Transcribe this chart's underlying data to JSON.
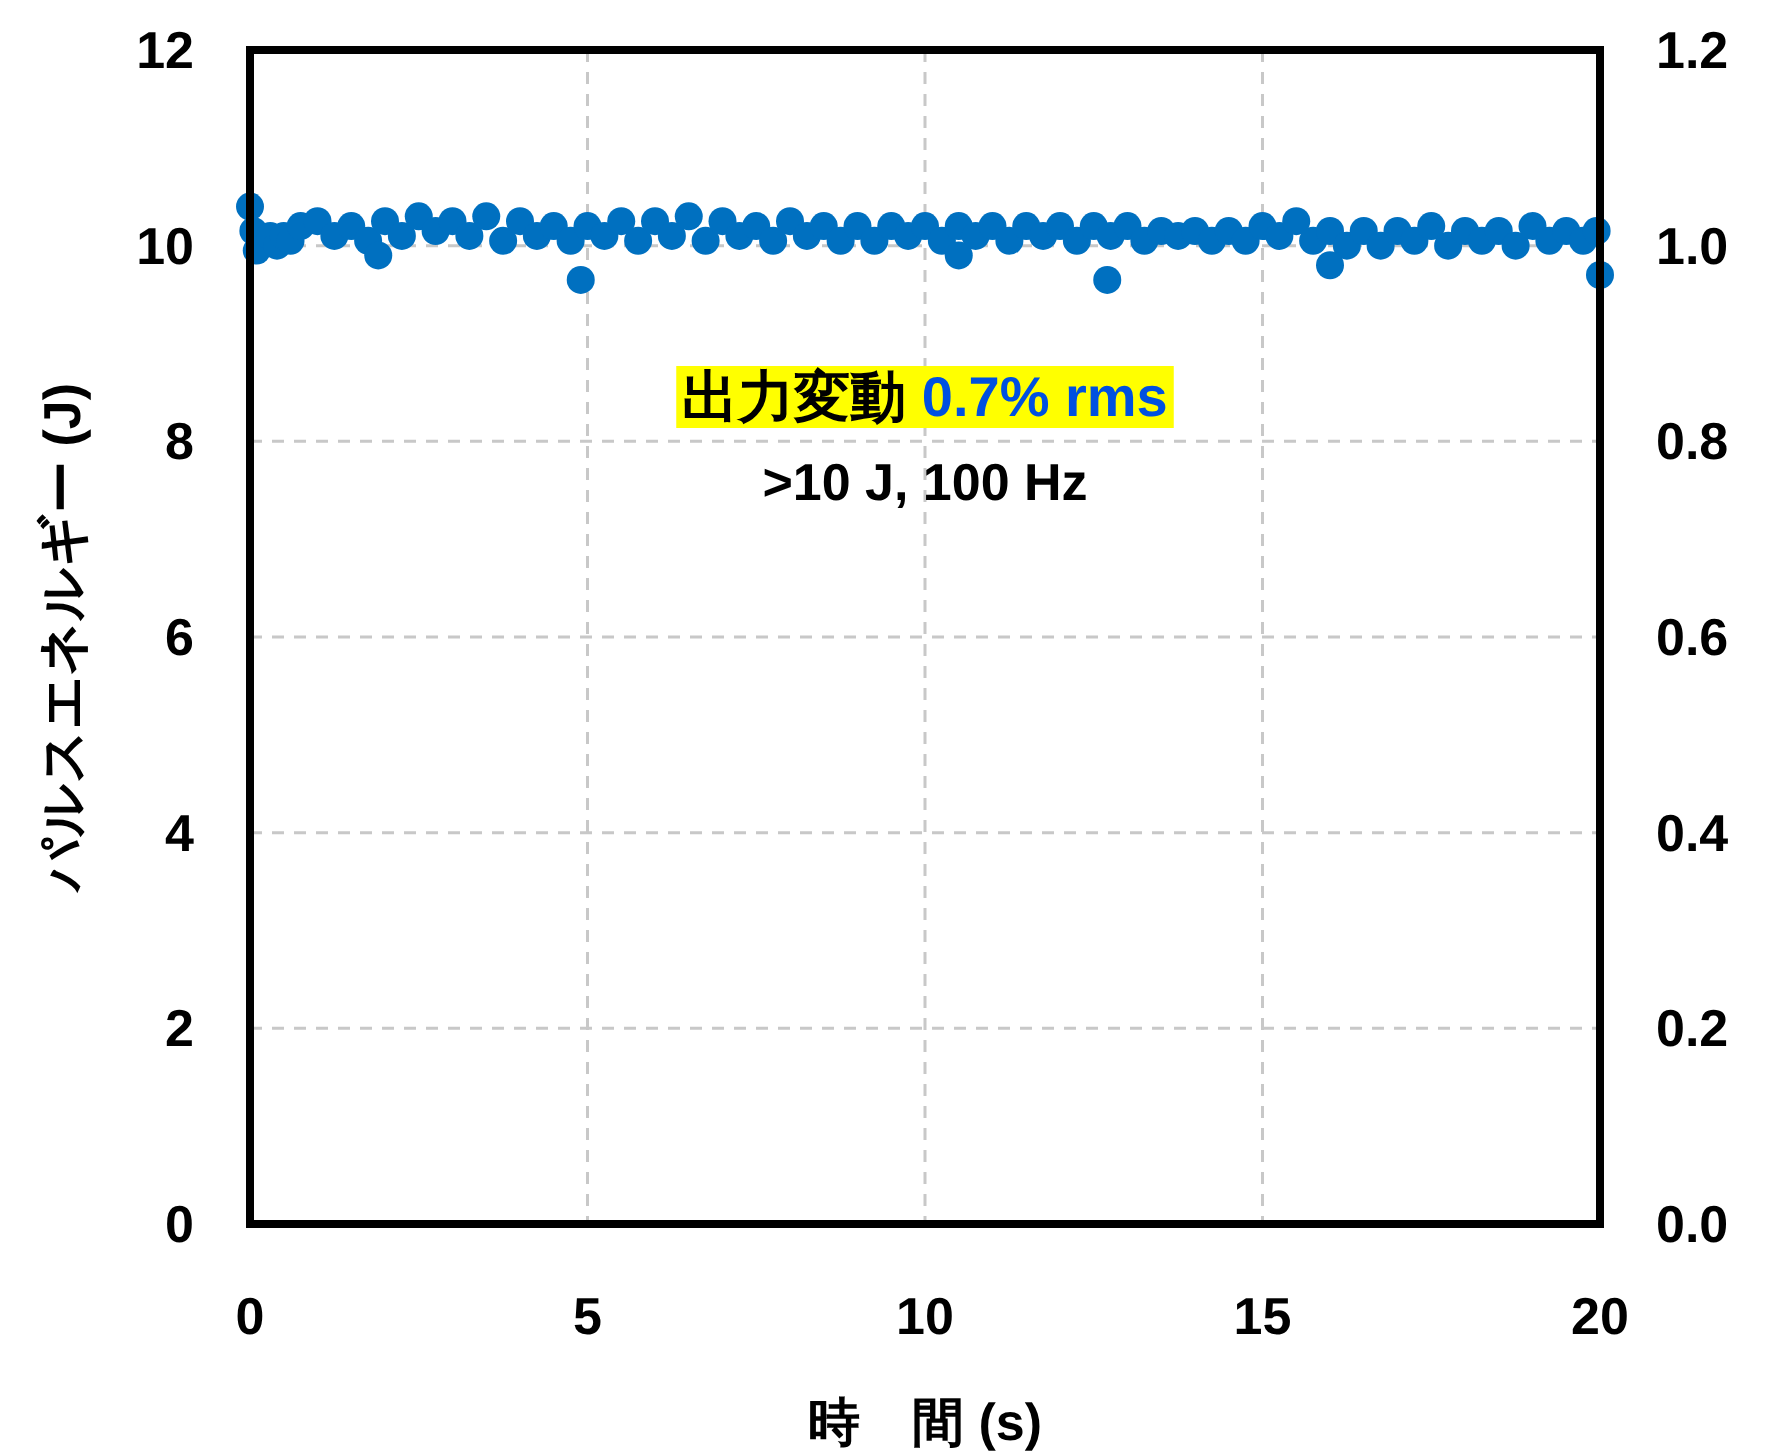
{
  "chart_data": {
    "type": "scatter",
    "xlabel": "時　間 (s)",
    "ylabel": "パルスエネルギー (J)",
    "xlim": [
      0,
      20
    ],
    "xticks": [
      0,
      5,
      10,
      15,
      20
    ],
    "ylim": [
      0,
      12
    ],
    "yticks": [
      0,
      2,
      4,
      6,
      8,
      10,
      12
    ],
    "y2lim": [
      0,
      1.2
    ],
    "y2ticks": [
      {
        "value": 0,
        "label": "0.0"
      },
      0.2,
      0.4,
      0.6,
      0.8,
      {
        "value": 1,
        "label": "1.0"
      },
      1.2
    ],
    "grid": true,
    "marker": "circle",
    "annotations": [
      "出力変動 0.7% rms",
      ">10 J, 100 Hz"
    ],
    "series": [
      {
        "color": "#0070c0",
        "x": [
          0,
          0.05,
          0.1,
          0.3,
          0.4,
          0.5,
          0.6,
          0.75,
          1.0,
          1.25,
          1.5,
          1.75,
          2.0,
          2.25,
          2.5,
          2.75,
          3.0,
          3.25,
          3.5,
          3.75,
          4.0,
          4.25,
          4.5,
          4.75,
          5.0,
          5.25,
          5.5,
          5.75,
          6.0,
          6.25,
          6.5,
          6.75,
          7.0,
          7.25,
          7.5,
          7.75,
          8.0,
          8.25,
          8.5,
          8.75,
          9.0,
          9.25,
          9.5,
          9.75,
          10.0,
          10.25,
          10.5,
          10.75,
          11.0,
          11.25,
          11.5,
          11.75,
          12.0,
          12.25,
          12.5,
          12.75,
          13.0,
          13.25,
          13.5,
          13.75,
          14.0,
          14.25,
          14.5,
          14.75,
          15.0,
          15.25,
          15.5,
          15.75,
          16.0,
          16.25,
          16.5,
          16.75,
          17.0,
          17.25,
          17.5,
          17.75,
          18.0,
          18.25,
          18.5,
          18.75,
          19.0,
          19.25,
          19.5,
          19.75,
          19.95,
          1.9,
          4.9,
          10.5,
          12.7,
          16.0,
          20.0
        ],
        "values": [
          10.4,
          10.15,
          9.95,
          10.1,
          10.0,
          10.1,
          10.05,
          10.2,
          10.25,
          10.1,
          10.2,
          10.05,
          10.25,
          10.1,
          10.3,
          10.15,
          10.25,
          10.1,
          10.3,
          10.05,
          10.25,
          10.1,
          10.2,
          10.05,
          10.2,
          10.1,
          10.25,
          10.05,
          10.25,
          10.1,
          10.3,
          10.05,
          10.25,
          10.1,
          10.2,
          10.05,
          10.25,
          10.1,
          10.2,
          10.05,
          10.2,
          10.05,
          10.2,
          10.1,
          10.2,
          10.05,
          10.2,
          10.1,
          10.2,
          10.05,
          10.2,
          10.1,
          10.2,
          10.05,
          10.2,
          10.1,
          10.2,
          10.05,
          10.15,
          10.1,
          10.15,
          10.05,
          10.15,
          10.05,
          10.2,
          10.1,
          10.25,
          10.05,
          10.15,
          10.0,
          10.15,
          10.0,
          10.15,
          10.05,
          10.2,
          10.0,
          10.15,
          10.05,
          10.15,
          10.0,
          10.2,
          10.05,
          10.15,
          10.05,
          10.15,
          9.9,
          9.65,
          9.9,
          9.65,
          9.8,
          9.7
        ]
      }
    ]
  }
}
